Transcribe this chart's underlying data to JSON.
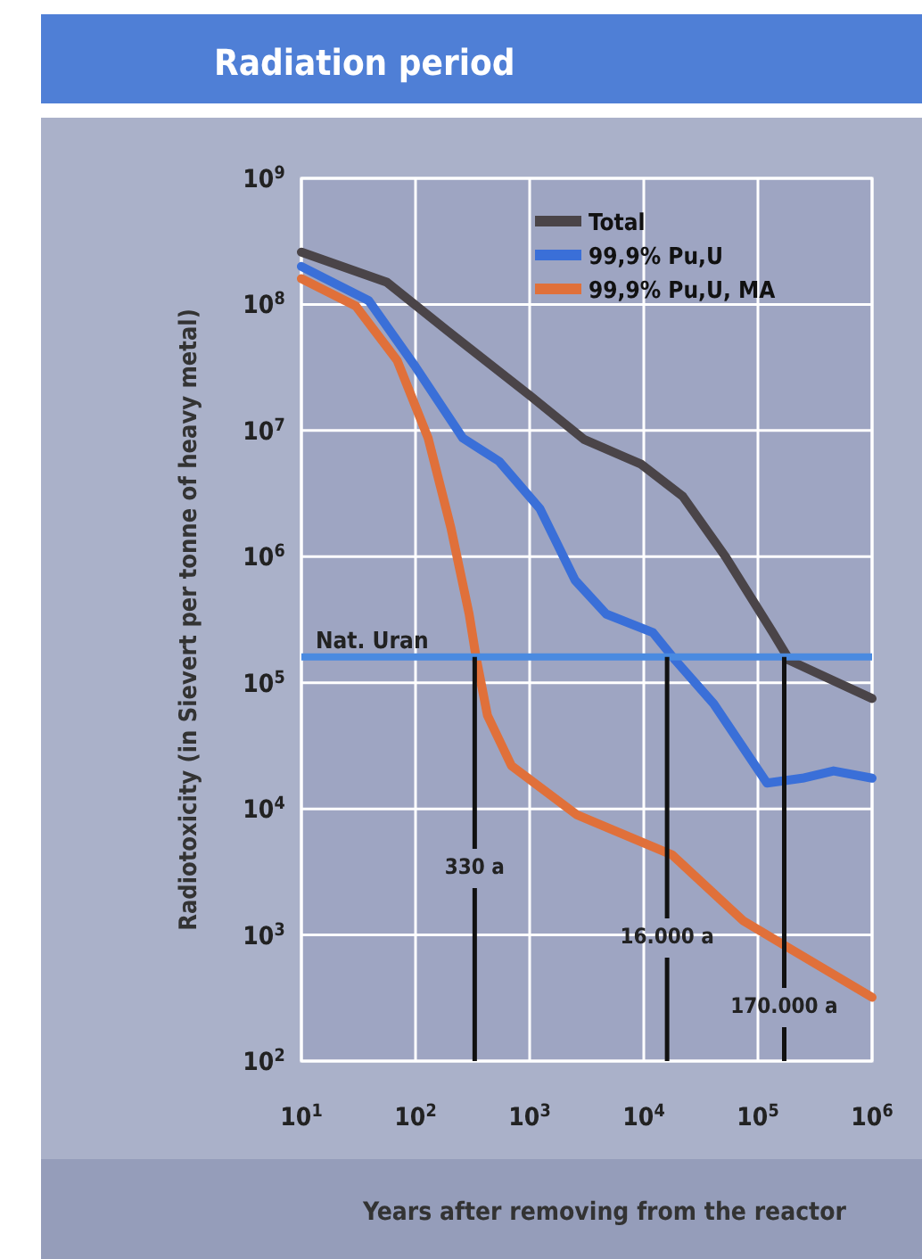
{
  "chart_data": {
    "type": "line",
    "title": "Radiation period",
    "xlabel": "Years after removing from the reactor",
    "ylabel": "Radiotoxicity (in Sievert per tonne of heavy metal)",
    "log": "xy",
    "grid": true,
    "legend": "top right",
    "xlim": [
      10,
      1000000
    ],
    "ylim": [
      100,
      1000000000
    ],
    "xticks": [
      {
        "value": 10,
        "label": "10$^{1}$"
      },
      {
        "value": 100,
        "label": "10$^{2}$"
      },
      {
        "value": 1000,
        "label": "10$^{3}$"
      },
      {
        "value": 10000,
        "label": "10$^{4}$"
      },
      {
        "value": 100000,
        "label": "10$^{5}$"
      },
      {
        "value": 1000000,
        "label": "10$^{6}$"
      }
    ],
    "yticks": [
      {
        "value": 100,
        "label": "10$^{2}$"
      },
      {
        "value": 1000,
        "label": "10$^{3}$"
      },
      {
        "value": 10000,
        "label": "10$^{4}$"
      },
      {
        "value": 100000,
        "label": "10$^{5}$"
      },
      {
        "value": 1000000,
        "label": "10$^{6}$"
      },
      {
        "value": 10000000,
        "label": "10$^{7}$"
      },
      {
        "value": 100000000,
        "label": "10$^{8}$"
      },
      {
        "value": 1000000000,
        "label": "10$^{9}$"
      }
    ],
    "series": [
      {
        "name": "Total",
        "color": "#4a4448",
        "x": [
          10,
          56,
          190,
          1000,
          3000,
          9500,
          22000,
          52000,
          135000,
          190000,
          1000000
        ],
        "values": [
          260000000,
          150000000,
          62000000,
          19000000,
          8500000,
          5400000,
          3000000,
          1000000,
          250000,
          150000,
          75000
        ]
      },
      {
        "name": "99,9% Pu,U",
        "color": "#3a6fd8",
        "x": [
          10,
          39,
          100,
          260,
          540,
          1230,
          2500,
          4700,
          12000,
          19000,
          41000,
          120000,
          245000,
          460000,
          1000000
        ],
        "values": [
          200000000,
          107000000,
          32000000,
          8700000,
          5700000,
          2400000,
          650000,
          350000,
          250000,
          150000,
          68000,
          16000,
          17500,
          20000,
          17500
        ]
      },
      {
        "name": "99,9% Pu,U, MA",
        "color": "#e0703a",
        "x": [
          10,
          30,
          69,
          129,
          204,
          295,
          339,
          427,
          692,
          2570,
          17800,
          74000,
          190000,
          1000000
        ],
        "values": [
          160000000,
          97000000,
          36000000,
          8700000,
          1700000,
          350000,
          160000,
          55000,
          22000,
          9000,
          4300,
          1300,
          780,
          320
        ]
      }
    ],
    "ref_lines": [
      {
        "axis": "y",
        "value": 160000,
        "label": "Nat. Uran",
        "color": "#4a8ae0"
      },
      {
        "axis": "x",
        "value": 330,
        "label": "330 a",
        "color": "#111111"
      },
      {
        "axis": "x",
        "value": 16000,
        "label": "16.000 a",
        "color": "#111111"
      },
      {
        "axis": "x",
        "value": 170000,
        "label": "170.000 a",
        "color": "#111111"
      }
    ]
  }
}
